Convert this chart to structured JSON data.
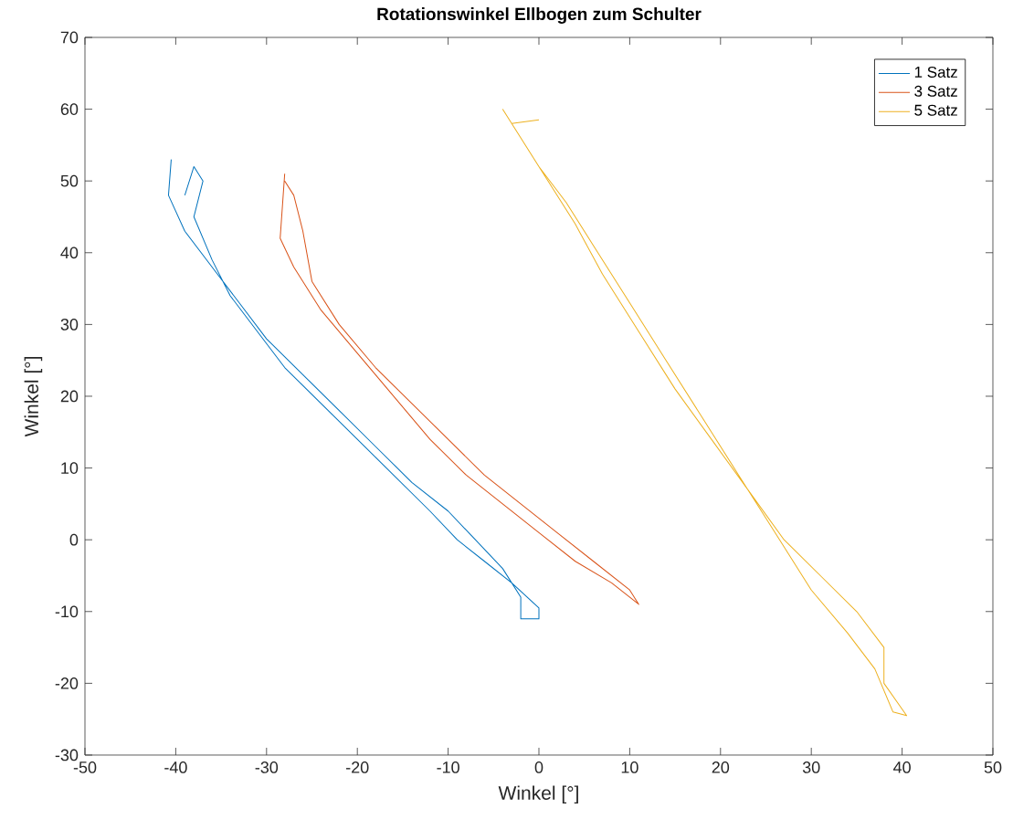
{
  "chart_data": {
    "type": "line",
    "title": "Rotationswinkel Ellbogen zum Schulter",
    "xlabel": "Winkel [°]",
    "ylabel": "Winkel [°]",
    "xlim": [
      -50,
      50
    ],
    "ylim": [
      -30,
      70
    ],
    "xticks": [
      -50,
      -40,
      -30,
      -20,
      -10,
      0,
      10,
      20,
      30,
      40,
      50
    ],
    "yticks": [
      -30,
      -20,
      -10,
      0,
      10,
      20,
      30,
      40,
      50,
      60,
      70
    ],
    "grid": false,
    "legend": "top right",
    "marker": "none",
    "line_style": "solid",
    "series": [
      {
        "name": "1 Satz",
        "color": "#0072bd",
        "x": [
          -40.5,
          -40.8,
          -39,
          -36,
          -33,
          -30,
          -26,
          -22,
          -18,
          -14,
          -10,
          -7,
          -4,
          -2,
          -2,
          0,
          0,
          -3,
          -6,
          -9,
          -12,
          -16,
          -20,
          -24,
          -28,
          -31,
          -34,
          -36,
          -38,
          -37,
          -38,
          -39
        ],
        "values": [
          53,
          48,
          43,
          38,
          33,
          28,
          23,
          18,
          13,
          8,
          4,
          0,
          -4,
          -8,
          -11,
          -11,
          -9.5,
          -6,
          -3,
          0,
          4,
          9,
          14,
          19,
          24,
          29,
          34,
          39,
          45,
          50,
          52,
          48
        ]
      },
      {
        "name": "3 Satz",
        "color": "#d95319",
        "x": [
          -28,
          -28.5,
          -27,
          -24,
          -20,
          -16,
          -12,
          -8,
          -4,
          0,
          4,
          8,
          11,
          10,
          6,
          2,
          -2,
          -6,
          -10,
          -14,
          -18,
          -22,
          -25,
          -26,
          -27,
          -28
        ],
        "values": [
          51,
          42,
          38,
          32,
          26,
          20,
          14,
          9,
          5,
          1,
          -3,
          -6,
          -9,
          -7,
          -3,
          1,
          5,
          9,
          14,
          19,
          24,
          30,
          36,
          43,
          48,
          50
        ]
      },
      {
        "name": "5 Satz",
        "color": "#edb120",
        "x": [
          -4,
          -2,
          0,
          3,
          6,
          10,
          14,
          18,
          22,
          26,
          30,
          34,
          37,
          39,
          40.5,
          38,
          38,
          35,
          31,
          27,
          23,
          19,
          15,
          11,
          7,
          4,
          0,
          -3,
          0
        ],
        "values": [
          60,
          56,
          52,
          47,
          41,
          33,
          25,
          17,
          9,
          1,
          -7,
          -13,
          -18,
          -24,
          -24.5,
          -20,
          -15,
          -10,
          -5,
          0,
          7,
          14,
          21,
          29,
          37,
          44,
          52,
          58,
          58.5
        ]
      }
    ]
  }
}
